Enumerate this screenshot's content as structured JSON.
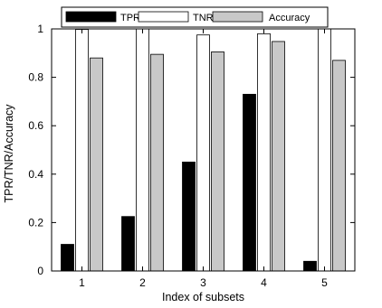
{
  "chart_data": {
    "type": "bar",
    "xlabel": "Index of subsets",
    "ylabel": "TPR/TNR/Accuracy",
    "categories": [
      "1",
      "2",
      "3",
      "4",
      "5"
    ],
    "ylim": [
      0,
      1
    ],
    "yticks": [
      0,
      0.2,
      0.4,
      0.6,
      0.8,
      1
    ],
    "ytick_labels": [
      "0",
      "0.2",
      "0.4",
      "0.6",
      "0.8",
      "1"
    ],
    "grid": false,
    "legend_placement": "top-center",
    "series": [
      {
        "name": "TPR",
        "color": "#000000",
        "values": [
          0.11,
          0.225,
          0.45,
          0.73,
          0.04
        ]
      },
      {
        "name": "TNR",
        "color": "#ffffff",
        "values": [
          0.998,
          1.0,
          0.975,
          0.98,
          1.0
        ]
      },
      {
        "name": "Accuracy",
        "color": "#c8c8c8",
        "values": [
          0.88,
          0.895,
          0.905,
          0.948,
          0.87
        ]
      }
    ]
  }
}
